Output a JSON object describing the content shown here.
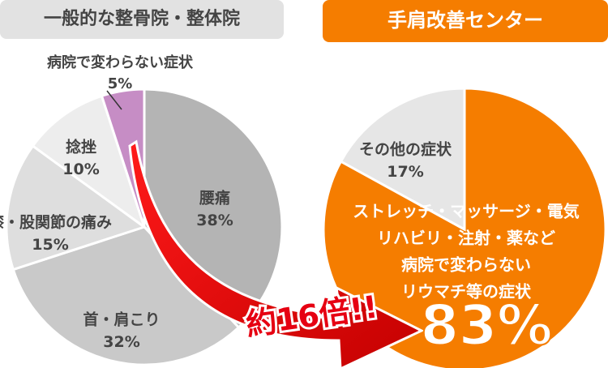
{
  "chart_data": [
    {
      "type": "pie",
      "title": "一般的な整骨院・整体院",
      "categories": [
        "腰痛",
        "首・肩こり",
        "膝・股関節の痛み",
        "捻挫",
        "病院で変わらない症状"
      ],
      "values": [
        38,
        32,
        15,
        10,
        5
      ],
      "value_labels": [
        "38%",
        "32%",
        "15%",
        "10%",
        "5%"
      ],
      "colors": [
        "#b4b4b4",
        "#c9c9c9",
        "#dedede",
        "#ededed",
        "#c68dc5"
      ]
    },
    {
      "type": "pie",
      "title": "手肩改善センター",
      "categories": [
        [
          "ストレッチ・マッサージ・電気",
          "リハビリ・注射・薬など",
          "病院で変わらない",
          "リウマチ等の症状"
        ],
        "その他の症状"
      ],
      "values": [
        83,
        17
      ],
      "value_labels": [
        "83%",
        "17%"
      ],
      "colors": [
        "#f57d00",
        "#e6e6e6"
      ]
    }
  ],
  "annotation": "約16倍!!"
}
